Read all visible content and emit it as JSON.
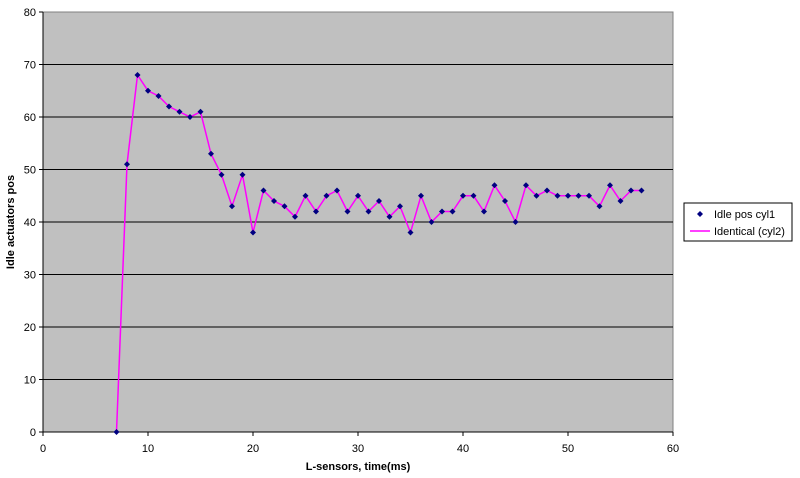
{
  "chart_data": {
    "type": "line",
    "title": "",
    "xlabel": "L-sensors, time(ms)",
    "ylabel": "Idle actuators pos",
    "xlim": [
      0,
      60
    ],
    "ylim": [
      0,
      80
    ],
    "xticks": [
      0,
      10,
      20,
      30,
      40,
      50,
      60
    ],
    "yticks": [
      0,
      10,
      20,
      30,
      40,
      50,
      60,
      70,
      80
    ],
    "grid": "horizontal",
    "legend_position": "right",
    "plot_background": "#c0c0c0",
    "series": [
      {
        "name": "Idle pos cyl1",
        "style": "markers",
        "marker": "diamond",
        "color": "#000080",
        "x": [
          7,
          8,
          9,
          10,
          11,
          12,
          13,
          14,
          15,
          16,
          17,
          18,
          19,
          20,
          21,
          22,
          23,
          24,
          25,
          26,
          27,
          28,
          29,
          30,
          31,
          32,
          33,
          34,
          35,
          36,
          37,
          38,
          39,
          40,
          41,
          42,
          43,
          44,
          45,
          46,
          47,
          48,
          49,
          50,
          51,
          52,
          53,
          54,
          55,
          56,
          57
        ],
        "y": [
          0,
          51,
          68,
          65,
          64,
          62,
          61,
          60,
          61,
          53,
          49,
          43,
          49,
          38,
          46,
          44,
          43,
          41,
          45,
          42,
          45,
          46,
          42,
          45,
          42,
          44,
          41,
          43,
          38,
          45,
          40,
          42,
          42,
          45,
          45,
          42,
          47,
          44,
          40,
          47,
          45,
          46,
          45,
          45,
          45,
          45,
          43,
          47,
          44,
          46,
          46
        ]
      },
      {
        "name": "Identical (cyl2)",
        "style": "line",
        "color": "#ff00ff",
        "x": [
          7,
          8,
          9,
          10,
          11,
          12,
          13,
          14,
          15,
          16,
          17,
          18,
          19,
          20,
          21,
          22,
          23,
          24,
          25,
          26,
          27,
          28,
          29,
          30,
          31,
          32,
          33,
          34,
          35,
          36,
          37,
          38,
          39,
          40,
          41,
          42,
          43,
          44,
          45,
          46,
          47,
          48,
          49,
          50,
          51,
          52,
          53,
          54,
          55,
          56,
          57
        ],
        "y": [
          0,
          51,
          68,
          65,
          64,
          62,
          61,
          60,
          61,
          53,
          49,
          43,
          49,
          38,
          46,
          44,
          43,
          41,
          45,
          42,
          45,
          46,
          42,
          45,
          42,
          44,
          41,
          43,
          38,
          45,
          40,
          42,
          42,
          45,
          45,
          42,
          47,
          44,
          40,
          47,
          45,
          46,
          45,
          45,
          45,
          45,
          43,
          47,
          44,
          46,
          46
        ]
      }
    ]
  }
}
